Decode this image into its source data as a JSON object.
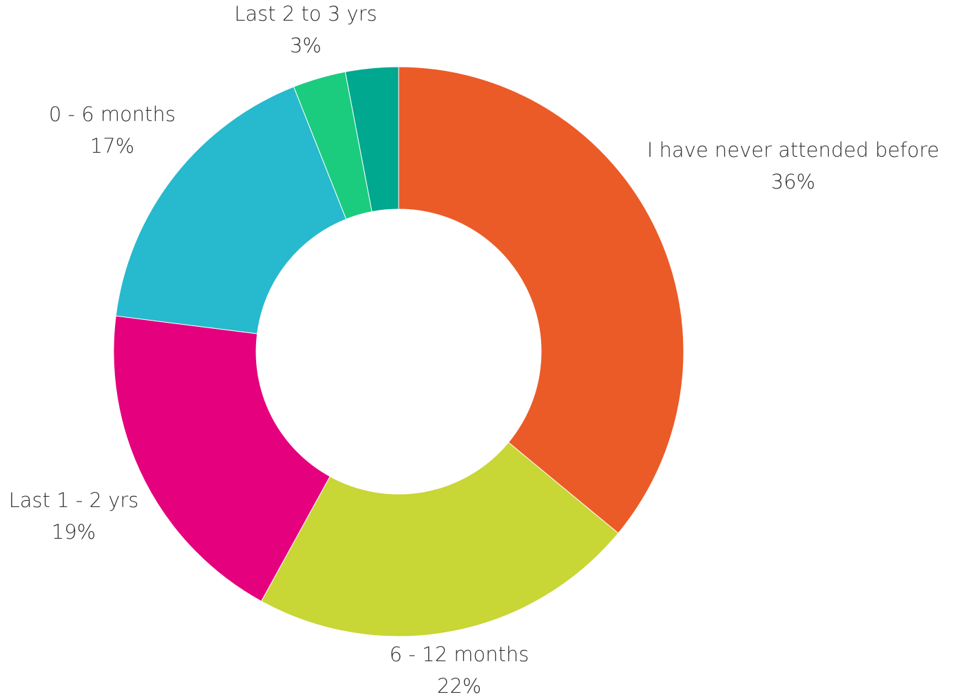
{
  "chart_data": {
    "type": "donut",
    "categories": [
      "I have never attended before",
      "6 - 12 months",
      "Last 1 - 2 yrs",
      "0 - 6 months",
      "Last 2 to 3 yrs",
      null
    ],
    "values": [
      36,
      22,
      19,
      17,
      3,
      3
    ],
    "value_labels": [
      "36%",
      "22%",
      "19%",
      "17%",
      "3%",
      null
    ],
    "colors": [
      "#eb5b28",
      "#c8d636",
      "#e5007e",
      "#27b9cd",
      "#1bcc7e",
      "#00a88f"
    ]
  }
}
